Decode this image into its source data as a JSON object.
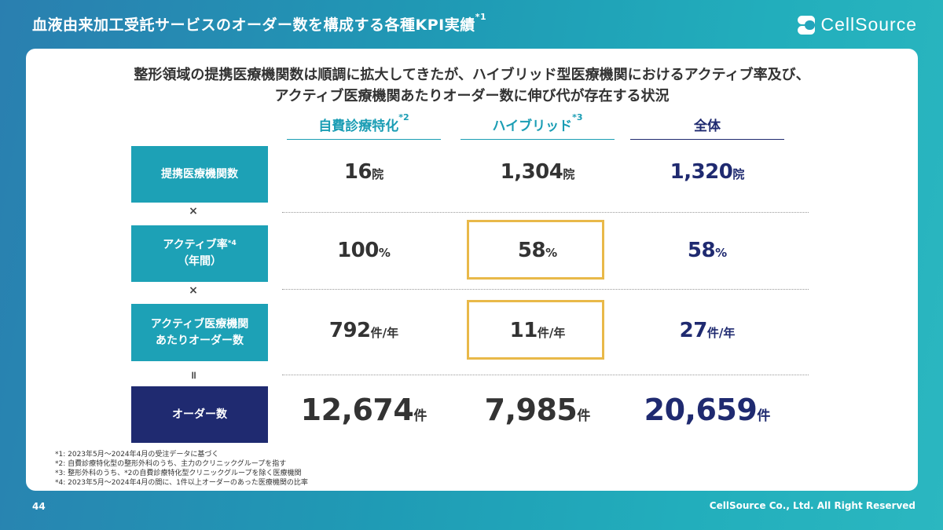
{
  "title": {
    "text": "血液由来加工受託サービスのオーダー数を構成する各種KPI実績",
    "note": "*1"
  },
  "logo": {
    "text": "CellSource",
    "icon": "cellsource-logo-icon"
  },
  "headline": {
    "line1": "整形領域の提携医療機関数は順調に拡大してきたが、ハイブリッド型医療機関におけるアクティブ率及び、",
    "line2": "アクティブ医療機関あたりオーダー数に伸び代が存在する状況"
  },
  "columns": [
    {
      "label": "自費診療特化",
      "note": "*2",
      "color": "#1a9db4"
    },
    {
      "label": "ハイブリッド",
      "note": "*3",
      "color": "#1a9db4"
    },
    {
      "label": "全体",
      "note": "",
      "color": "#1f2a70"
    }
  ],
  "rows": {
    "partners": {
      "label": "提携医療機関数",
      "values": [
        {
          "num": "16",
          "unit": "院"
        },
        {
          "num": "1,304",
          "unit": "院"
        },
        {
          "num": "1,320",
          "unit": "院"
        }
      ]
    },
    "active_rate": {
      "label_line1": "アクティブ率",
      "label_note": "*4",
      "label_line2": "（年間）",
      "values": [
        {
          "num": "100",
          "unit": "%"
        },
        {
          "num": "58",
          "unit": "%"
        },
        {
          "num": "58",
          "unit": "%"
        }
      ]
    },
    "orders_per": {
      "label_line1": "アクティブ医療機関",
      "label_line2": "あたりオーダー数",
      "values": [
        {
          "num": "792",
          "unit": "件/年"
        },
        {
          "num": "11",
          "unit": "件/年"
        },
        {
          "num": "27",
          "unit": "件/年"
        }
      ]
    },
    "orders": {
      "label": "オーダー数",
      "values": [
        {
          "num": "12,674",
          "unit": "件"
        },
        {
          "num": "7,985",
          "unit": "件"
        },
        {
          "num": "20,659",
          "unit": "件"
        }
      ]
    }
  },
  "operators": {
    "times1": "×",
    "times2": "×",
    "equals": "॥"
  },
  "colors": {
    "accent": "#1da1b6",
    "navy": "#1f2a70",
    "highlight": "#e9b949"
  },
  "footnotes": [
    "*1: 2023年5月～2024年4月の受注データに基づく",
    "*2: 自費診療特化型の整形外科のうち、主力のクリニックグループを指す",
    "*3: 整形外科のうち、*2の自費診療特化型クリニックグループを除く医療機関",
    "*4: 2023年5月～2024年4月の間に、1件以上オーダーのあった医療機関の比率"
  ],
  "footer": {
    "page": "44",
    "copyright": "CellSource Co., Ltd. All Right Reserved"
  }
}
